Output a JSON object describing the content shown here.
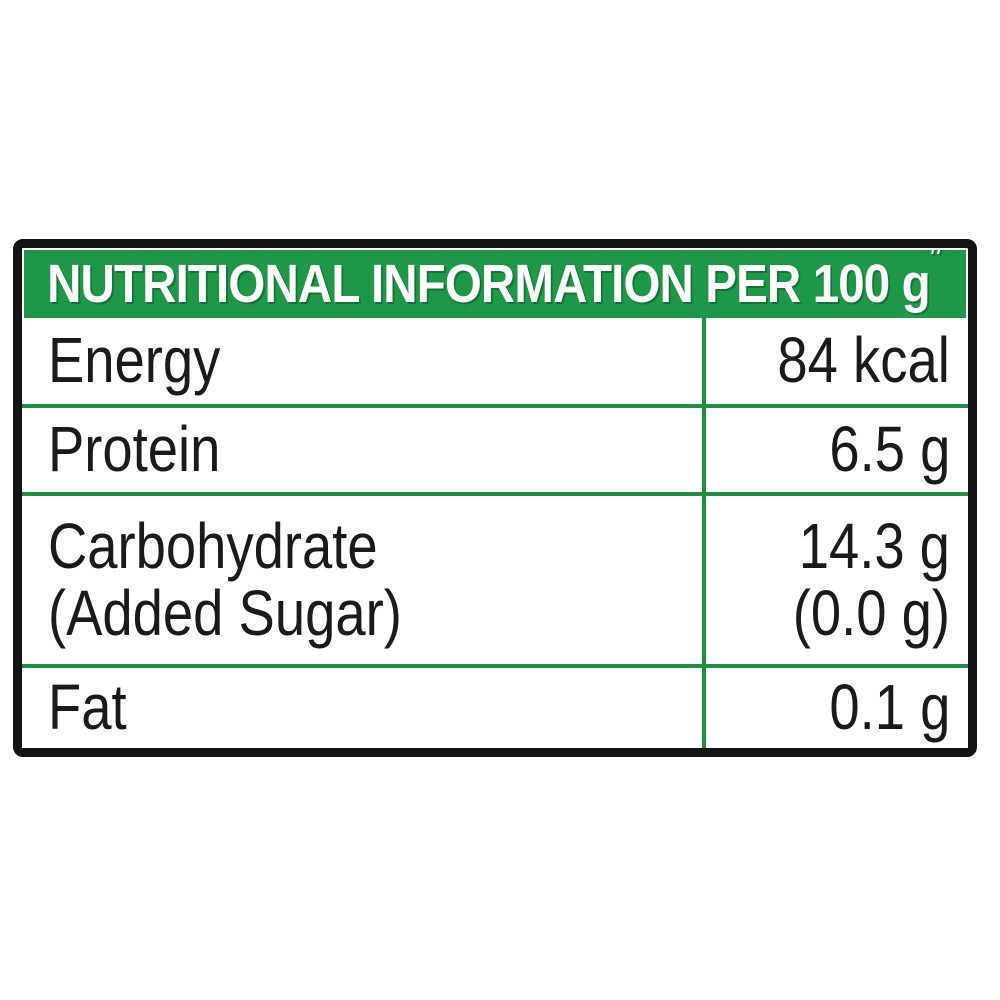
{
  "table": {
    "header": {
      "title": "NUTRITIONAL INFORMATION PER 100 g",
      "superscript": "#"
    },
    "rows": [
      {
        "label_line1": "Energy",
        "value_line1": "84 kcal"
      },
      {
        "label_line1": "Protein",
        "value_line1": "6.5 g"
      },
      {
        "label_line1": "Carbohydrate",
        "label_line2": "(Added Sugar)",
        "value_line1": "14.3 g",
        "value_line2": "(0.0 g)"
      },
      {
        "label_line1": "Fat",
        "value_line1": "0.1 g"
      }
    ],
    "colors": {
      "header_green": "#1E9749",
      "divider_green": "#1E8F44",
      "border_black": "#141414",
      "header_text": "#FFFFFF",
      "body_text": "#1A1A1A",
      "background": "#FFFFFF"
    }
  }
}
